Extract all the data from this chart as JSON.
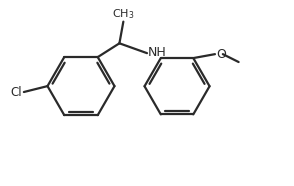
{
  "background_color": "#ffffff",
  "line_color": "#2a2a2a",
  "line_width": 1.6,
  "label_fontsize": 8.5,
  "label_color": "#2a2a2a",
  "Cl_label": "Cl",
  "NH_label": "NH",
  "O_label": "O"
}
